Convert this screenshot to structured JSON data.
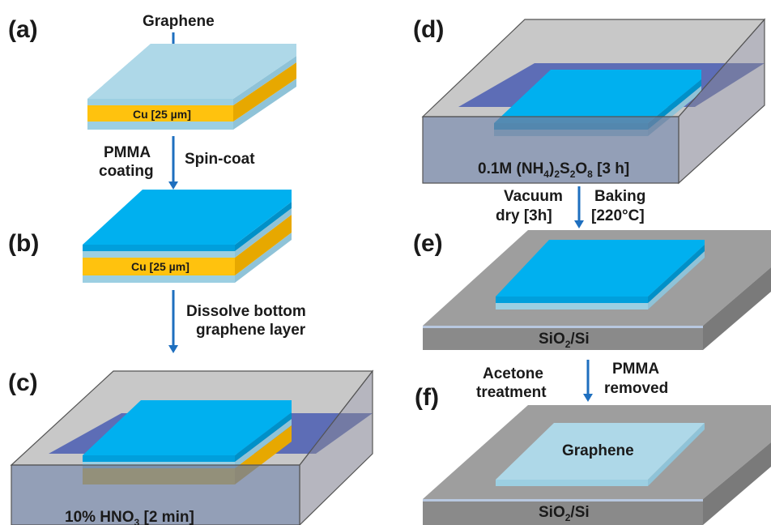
{
  "panels": {
    "a": {
      "label": "(a)",
      "graphene_label": "Graphene",
      "cu_label": "Cu [25 µm]"
    },
    "b": {
      "label": "(b)",
      "cu_label": "Cu [25 µm]"
    },
    "c": {
      "label": "(c)",
      "solution_main": "10% HNO",
      "solution_sub": "3",
      "solution_tail": " [2 min]"
    },
    "d": {
      "label": "(d)"
    },
    "e": {
      "label": "(e)",
      "substrate": "SiO",
      "substrate_sub": "2",
      "substrate_tail": "/Si"
    },
    "f": {
      "label": "(f)",
      "graphene_label": "Graphene",
      "substrate": "SiO",
      "substrate_sub": "2",
      "substrate_tail": "/Si"
    }
  },
  "solution_d": {
    "p1": "0.1M (NH",
    "s1": "4",
    "p2": ")",
    "s2": "2",
    "p3": "S",
    "s3": "2",
    "p4": "O",
    "s4": "8",
    "p5": " [3 h]"
  },
  "steps": {
    "ab_left_line1": "PMMA",
    "ab_left_line2": "coating",
    "ab_right": "Spin-coat",
    "bc_line1": "Dissolve bottom",
    "bc_line2": "graphene layer",
    "de_left_line1": "Vacuum",
    "de_left_line2": "dry [3h]",
    "de_right_line1": "Baking",
    "de_right_line2": "[220°C]",
    "ef_left_line1": "Acetone",
    "ef_left_line2": "treatment",
    "ef_right_line1": "PMMA",
    "ef_right_line2": "removed"
  },
  "colors": {
    "graphene": "#aed8e8",
    "copper": "#ffc20e",
    "pmma": "#00b0ef",
    "etchant": "#3a4fb0",
    "substrate": "#9e9e9e",
    "arrow": "#1e6fbf"
  }
}
